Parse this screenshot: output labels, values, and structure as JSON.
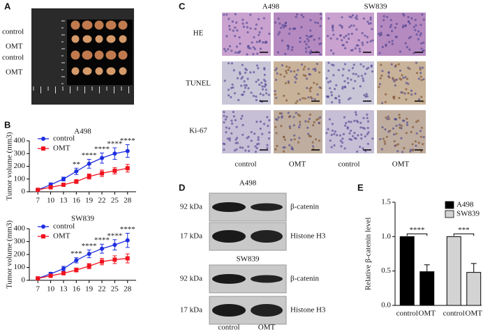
{
  "panels": {
    "a": {
      "label": "A",
      "rows": [
        "control",
        "OMT",
        "control",
        "OMT"
      ]
    },
    "b": {
      "label": "B"
    },
    "c": {
      "label": "C",
      "columns": [
        "A498",
        "SW839"
      ],
      "rows": [
        "HE",
        "TUNEL",
        "Ki-67"
      ],
      "groups": [
        "control",
        "OMT",
        "control",
        "OMT"
      ]
    },
    "d": {
      "label": "D",
      "blocks": [
        {
          "title": "A498",
          "bands": [
            {
              "size": "92 kDa",
              "protein": "β-catenin"
            },
            {
              "size": "17 kDa",
              "protein": "Histone H3"
            }
          ]
        },
        {
          "title": "SW839",
          "bands": [
            {
              "size": "92 kDa",
              "protein": "β-catenin"
            },
            {
              "size": "17 kDa",
              "protein": "Histone H3"
            }
          ]
        }
      ],
      "groups": [
        "control",
        "OMT"
      ]
    },
    "e": {
      "label": "E"
    }
  },
  "chart_data": [
    {
      "type": "line",
      "title": "A498",
      "y_label": "Tumor volume (mm3)",
      "x": [
        7,
        10,
        13,
        16,
        19,
        22,
        25,
        28
      ],
      "xlim": [
        5,
        30
      ],
      "xticks": [
        7,
        10,
        13,
        16,
        19,
        22,
        25,
        28
      ],
      "ylim": [
        0,
        400
      ],
      "yticks": [
        0,
        100,
        200,
        300,
        400
      ],
      "legend": "upper-left",
      "series": [
        {
          "name": "control",
          "color": "#1f2ee0",
          "marker": "circle",
          "values": [
            15,
            55,
            100,
            160,
            220,
            265,
            300,
            320
          ],
          "errors": [
            5,
            15,
            15,
            25,
            35,
            40,
            45,
            50
          ]
        },
        {
          "name": "OMT",
          "color": "#f0131e",
          "marker": "square",
          "values": [
            15,
            35,
            55,
            80,
            120,
            145,
            165,
            185
          ],
          "errors": [
            5,
            8,
            10,
            15,
            20,
            25,
            25,
            30
          ]
        }
      ],
      "annotations": [
        {
          "x": 16,
          "text": "**"
        },
        {
          "x": 19,
          "text": "****"
        },
        {
          "x": 22,
          "text": "****"
        },
        {
          "x": 25,
          "text": "****"
        },
        {
          "x": 28,
          "text": "****"
        }
      ]
    },
    {
      "type": "line",
      "title": "SW839",
      "y_label": "Tumor volume (mm3)",
      "x": [
        7,
        10,
        13,
        16,
        19,
        22,
        25,
        28
      ],
      "xlim": [
        5,
        30
      ],
      "xticks": [
        7,
        10,
        13,
        16,
        19,
        22,
        25,
        28
      ],
      "ylim": [
        0,
        400
      ],
      "yticks": [
        0,
        100,
        200,
        300,
        400
      ],
      "legend": "upper-left",
      "series": [
        {
          "name": "control",
          "color": "#1f2ee0",
          "marker": "circle",
          "values": [
            15,
            50,
            90,
            155,
            205,
            245,
            275,
            310
          ],
          "errors": [
            5,
            12,
            18,
            20,
            30,
            35,
            40,
            55
          ]
        },
        {
          "name": "OMT",
          "color": "#f0131e",
          "marker": "square",
          "values": [
            15,
            35,
            55,
            80,
            110,
            145,
            160,
            170
          ],
          "errors": [
            5,
            8,
            10,
            15,
            20,
            25,
            30,
            35
          ]
        }
      ],
      "annotations": [
        {
          "x": 16,
          "text": "***"
        },
        {
          "x": 19,
          "text": "****"
        },
        {
          "x": 22,
          "text": "****"
        },
        {
          "x": 25,
          "text": "****"
        },
        {
          "x": 28,
          "text": "****"
        }
      ]
    },
    {
      "type": "bar",
      "y_label": "Relative β-catenin level",
      "categories": [
        "control",
        "OMT",
        "control",
        "OMT"
      ],
      "ylim": [
        0,
        1.5
      ],
      "yticks": [
        {
          "value": 0,
          "label": "0.0"
        },
        0.5,
        {
          "value": 1,
          "label": "1.0"
        },
        1.5
      ],
      "legend": "upper-right",
      "series": [
        {
          "name": "A498",
          "color": "#000000",
          "values": [
            1.0,
            0.49,
            null,
            null
          ],
          "errors": [
            null,
            0.1,
            null,
            null
          ]
        },
        {
          "name": "SW839",
          "color": "#d3d3d3",
          "values": [
            null,
            null,
            1.0,
            0.48
          ],
          "errors": [
            null,
            null,
            null,
            0.13
          ]
        }
      ],
      "annotations": [
        "****",
        "***"
      ]
    }
  ]
}
